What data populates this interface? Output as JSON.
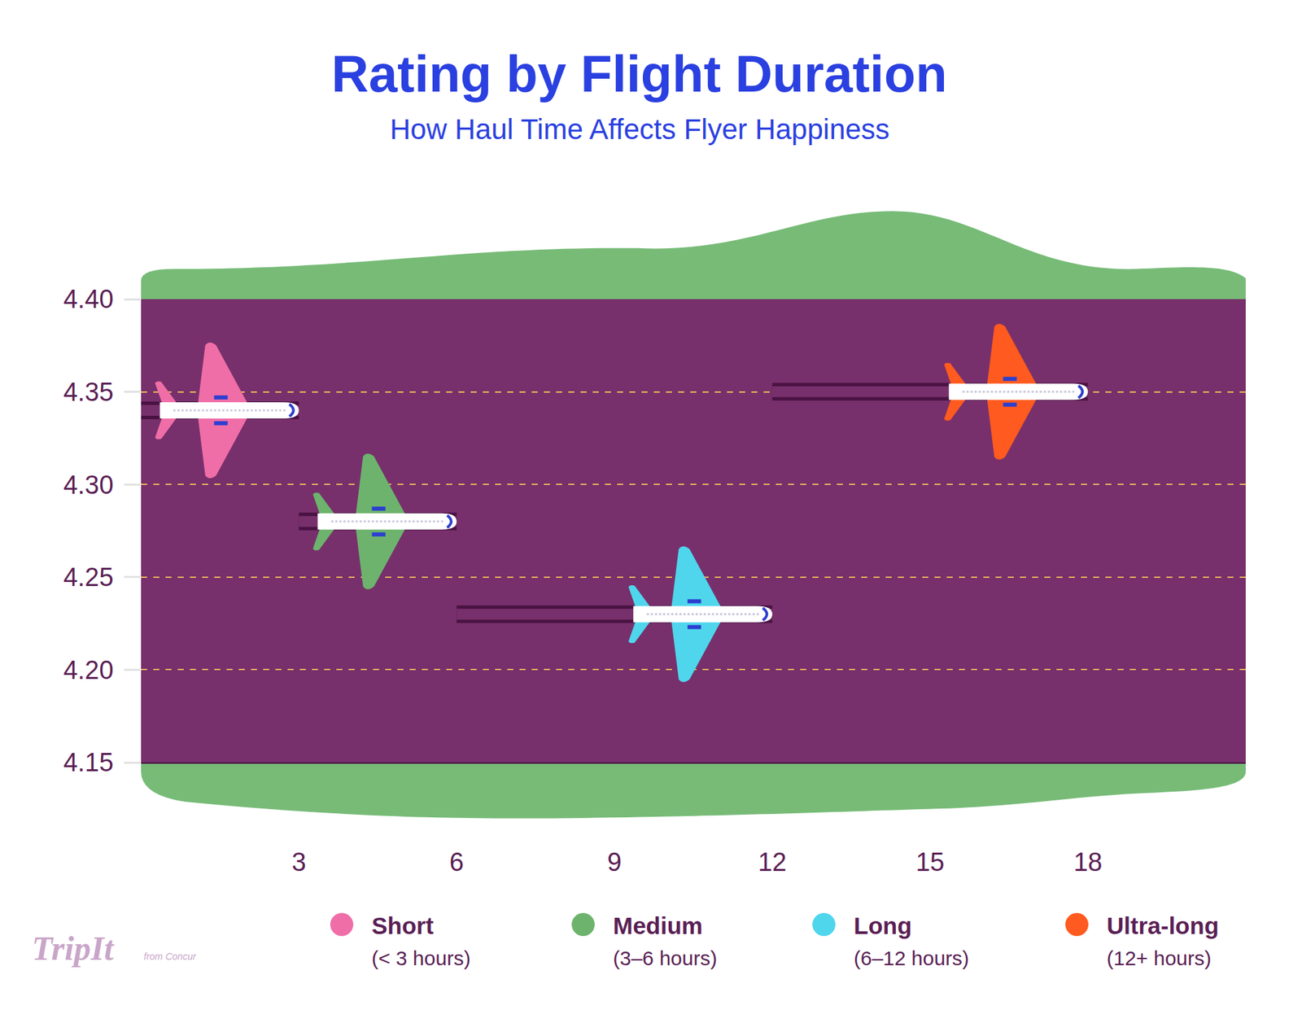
{
  "chart_data": {
    "type": "line",
    "title": "Rating by Flight Duration",
    "subtitle": "How Haul Time Affects Flyer Happiness",
    "logo": {
      "text": "TripIt",
      "subtext": "from Concur"
    },
    "series": [
      {
        "name": "Short",
        "description": "(< 3 hours)",
        "color": "#f06ea8",
        "x": [
          0,
          3
        ],
        "values": [
          4.34,
          4.34
        ]
      },
      {
        "name": "Medium",
        "description": "(3–6 hours)",
        "color": "#6db36d",
        "x": [
          3,
          6
        ],
        "values": [
          4.28,
          4.28
        ]
      },
      {
        "name": "Long",
        "description": "(6–12 hours)",
        "color": "#4fd6ec",
        "x": [
          6,
          12
        ],
        "values": [
          4.23,
          4.23
        ]
      },
      {
        "name": "Ultra-long",
        "description": "(12+ hours)",
        "color": "#ff5a1f",
        "x": [
          12,
          18
        ],
        "values": [
          4.35,
          4.35
        ]
      }
    ],
    "xlim": [
      0,
      21
    ],
    "xticks": [
      3,
      6,
      9,
      12,
      15,
      18
    ],
    "ylim": [
      4.15,
      4.4
    ],
    "yticks": [
      4.15,
      {
        "value": 4.2,
        "label": "4.20"
      },
      4.25,
      {
        "value": 4.3,
        "label": "4.30"
      },
      4.35,
      {
        "value": 4.4,
        "label": "4.40"
      }
    ],
    "grid": true,
    "legend": "bottom"
  }
}
